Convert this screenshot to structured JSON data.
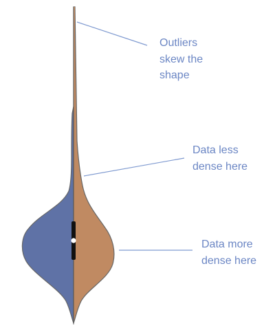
{
  "colors": {
    "left_half": "#5f72a6",
    "right_half": "#c08a62",
    "outline": "#666666",
    "box": "#111111",
    "median": "#ffffff",
    "annotation_text": "#6b86c4",
    "leader_line": "#7f9ad0"
  },
  "annotations": [
    {
      "id": "outliers",
      "lines": [
        "Outliers",
        "skew the",
        "shape"
      ]
    },
    {
      "id": "less-dense",
      "lines": [
        "Data less",
        "dense here"
      ]
    },
    {
      "id": "more-dense",
      "lines": [
        "Data more",
        "dense here"
      ]
    }
  ]
}
